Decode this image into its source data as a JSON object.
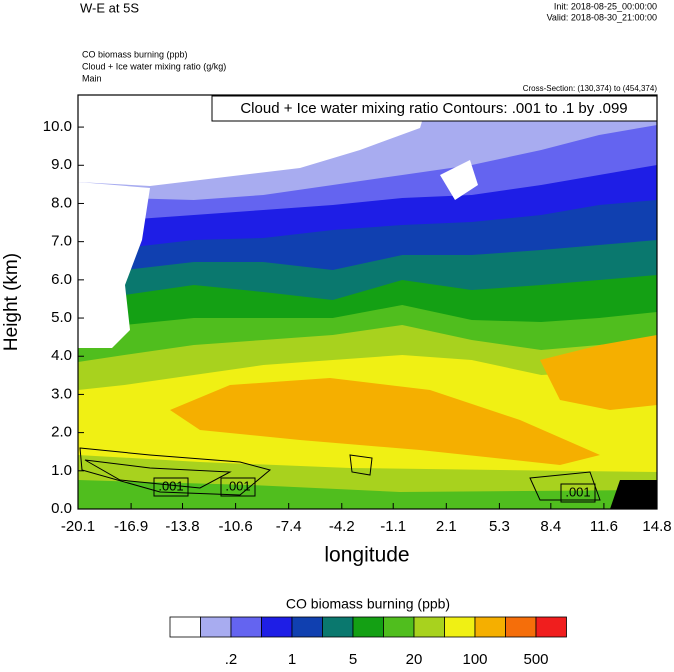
{
  "chart_data": {
    "type": "contour",
    "title": "W-E at 5S",
    "init": "Init: 2018-08-25_00:00:00",
    "valid": "Valid: 2018-08-30_21:00:00",
    "field_name": "CO biomass burning   (ppb)",
    "contour_name": "Cloud + Ice water mixing ratio   (g/kg)",
    "domain": "Main",
    "cross_section": "Cross-Section: (130,374) to (454,374)",
    "contour_info": "Cloud + Ice water mixing ratio Contours: .001 to .1 by .099",
    "contour_labels": [
      ".001",
      ".001",
      ".001"
    ],
    "xlabel": "longitude",
    "ylabel": "Height (km)",
    "xlim": [
      -20.1,
      14.8
    ],
    "xticks": [
      -20.1,
      -16.9,
      -13.8,
      -10.6,
      -7.4,
      -4.2,
      -1.1,
      2.1,
      5.3,
      8.4,
      11.6,
      14.8
    ],
    "ylim": [
      0,
      10.84
    ],
    "yticks": [
      {
        "value": 0,
        "label": "0.0"
      },
      {
        "value": 1,
        "label": "1.0"
      },
      {
        "value": 2,
        "label": "2.0"
      },
      {
        "value": 3,
        "label": "3.0"
      },
      {
        "value": 4,
        "label": "4.0"
      },
      {
        "value": 5,
        "label": "5.0"
      },
      {
        "value": 6,
        "label": "6.0"
      },
      {
        "value": 7,
        "label": "7.0"
      },
      {
        "value": 8,
        "label": "8.0"
      },
      {
        "value": 9,
        "label": "9.0"
      },
      {
        "value": 10,
        "label": "10.0"
      }
    ],
    "colorbar": {
      "title": "CO biomass burning  (ppb)",
      "colors": [
        "#ffffff",
        "#a8acf0",
        "#6464f0",
        "#1e1ee6",
        "#1040b0",
        "#0a786e",
        "#14a014",
        "#50be1e",
        "#a8d21e",
        "#f0f014",
        "#f5af00",
        "#f56e0a",
        "#f01e1e"
      ],
      "levels": [
        {
          "value": 0.2,
          "label": ".2"
        },
        1,
        5,
        20,
        100,
        500
      ]
    }
  }
}
